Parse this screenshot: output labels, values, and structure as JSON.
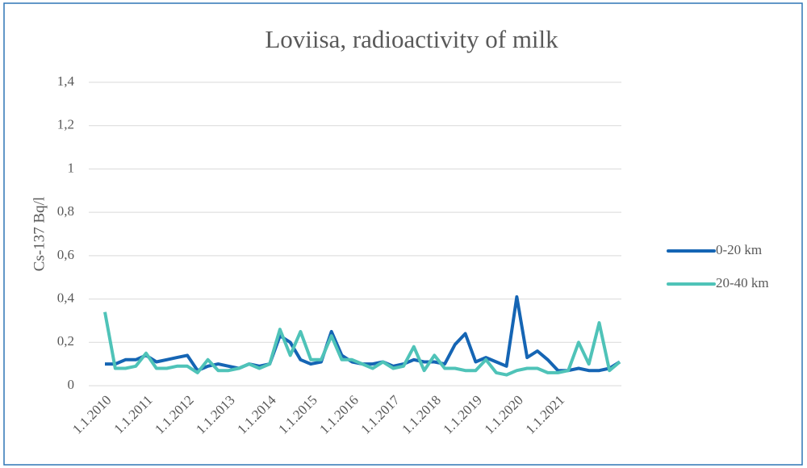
{
  "chart_data": {
    "type": "line",
    "title": "Loviisa, radioactivity of milk",
    "y_label": "Cs-137 Bq/l",
    "categories": [
      "1.1.2010",
      null,
      null,
      null,
      "1.1.2011",
      null,
      null,
      null,
      "1.1.2012",
      null,
      null,
      null,
      "1.1.2013",
      null,
      null,
      null,
      "1.1.2014",
      null,
      null,
      null,
      "1.1.2015",
      null,
      null,
      null,
      "1.1.2016",
      null,
      null,
      null,
      "1.1.2017",
      null,
      null,
      null,
      "1.1.2018",
      null,
      null,
      null,
      "1.1.2019",
      null,
      null,
      null,
      "1.1.2020",
      null,
      null,
      null,
      "1.1.2021",
      null,
      null,
      null,
      null,
      null,
      null
    ],
    "series": [
      {
        "name": "0-20 km",
        "color": "#1565b4",
        "values": [
          0.1,
          0.1,
          0.12,
          0.12,
          0.14,
          0.11,
          0.12,
          0.13,
          0.14,
          0.07,
          0.09,
          0.1,
          0.09,
          0.08,
          0.1,
          0.09,
          0.1,
          0.23,
          0.2,
          0.12,
          0.1,
          0.11,
          0.25,
          0.14,
          0.11,
          0.1,
          0.1,
          0.11,
          0.09,
          0.1,
          0.12,
          0.11,
          0.11,
          0.1,
          0.19,
          0.24,
          0.11,
          0.13,
          0.11,
          0.09,
          0.41,
          0.13,
          0.16,
          0.12,
          0.07,
          0.07,
          0.08,
          0.07,
          0.07,
          0.08,
          0.11
        ]
      },
      {
        "name": "20-40 km",
        "color": "#4fc3b8",
        "values": [
          0.34,
          0.08,
          0.08,
          0.09,
          0.15,
          0.08,
          0.08,
          0.09,
          0.09,
          0.06,
          0.12,
          0.07,
          0.07,
          0.08,
          0.1,
          0.08,
          0.1,
          0.26,
          0.14,
          0.25,
          0.12,
          0.12,
          0.23,
          0.12,
          0.12,
          0.1,
          0.08,
          0.11,
          0.08,
          0.09,
          0.18,
          0.07,
          0.14,
          0.08,
          0.08,
          0.07,
          0.07,
          0.12,
          0.06,
          0.05,
          0.07,
          0.08,
          0.08,
          0.06,
          0.06,
          0.07,
          0.2,
          0.1,
          0.29,
          0.07,
          0.11
        ]
      }
    ],
    "ylim": [
      0,
      1.4
    ],
    "yticks": [
      0,
      {
        "value": 0.2,
        "label": "0,2"
      },
      {
        "value": 0.4,
        "label": "0,4"
      },
      {
        "value": 0.6,
        "label": "0,6"
      },
      {
        "value": 0.8,
        "label": "0,8"
      },
      1,
      {
        "value": 1.2,
        "label": "1,2"
      },
      {
        "value": 1.4,
        "label": "1,4"
      }
    ],
    "grid": true,
    "legend": "right"
  }
}
